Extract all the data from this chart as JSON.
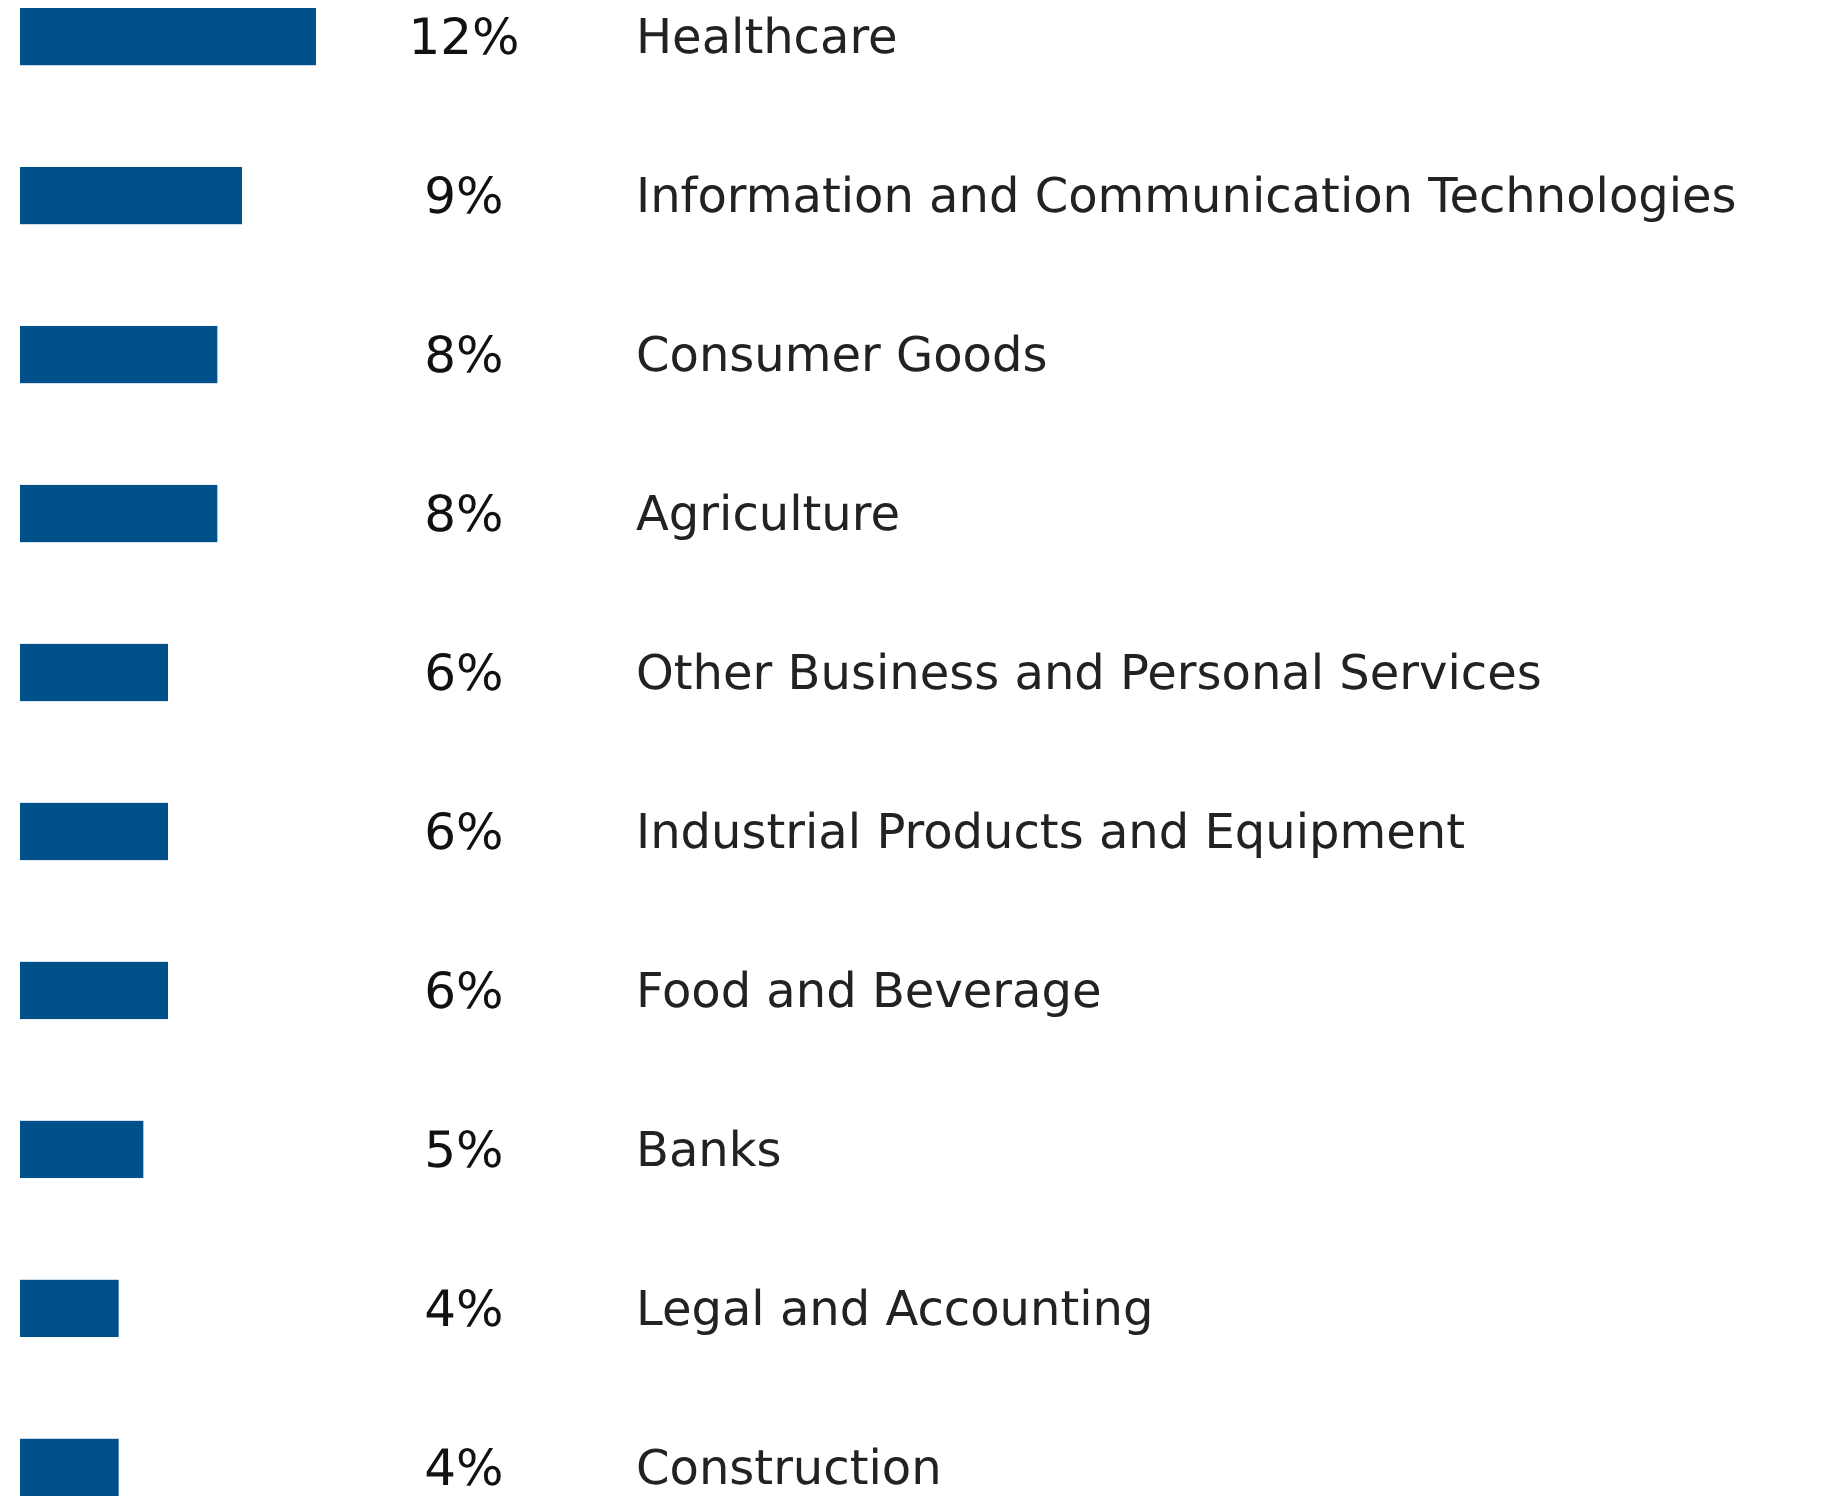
{
  "chart_data": {
    "type": "bar",
    "orientation": "horizontal",
    "categories": [
      "Healthcare",
      "Information and Communication Technologies",
      "Consumer Goods",
      "Agriculture",
      "Other Business and Personal Services",
      "Industrial Products and Equipment",
      "Food and Beverage",
      "Banks",
      "Legal and Accounting",
      "Construction"
    ],
    "values": [
      12,
      9,
      8,
      8,
      6,
      6,
      6,
      5,
      4,
      4
    ],
    "color": "#00508a",
    "data_labels": true,
    "value_labels": [
      "12%",
      "9%",
      "8%",
      "8%",
      "6%",
      "6%",
      "6%",
      "5%",
      "4%",
      "4%"
    ]
  }
}
